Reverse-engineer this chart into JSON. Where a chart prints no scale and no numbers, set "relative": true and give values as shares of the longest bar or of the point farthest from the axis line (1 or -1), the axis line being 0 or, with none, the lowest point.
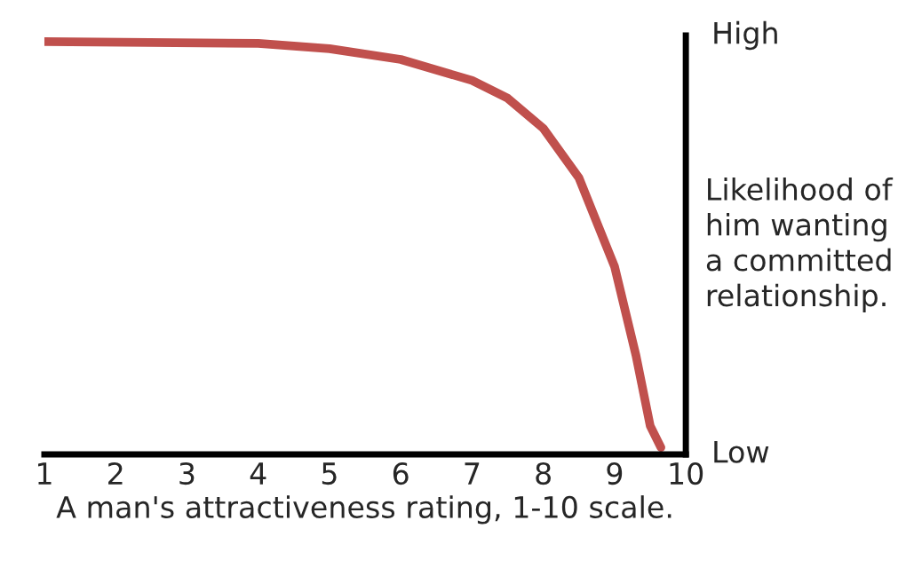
{
  "chart_data": {
    "type": "line",
    "relative": true,
    "x": [
      1,
      4,
      5,
      6,
      7,
      7.5,
      8,
      8.5,
      9,
      9.3,
      9.5,
      9.65
    ],
    "series": [
      {
        "color": "#c0504d",
        "values": [
          1,
          0.996,
          0.983,
          0.957,
          0.906,
          0.863,
          0.79,
          0.67,
          0.455,
          0.24,
          0.069,
          0.017
        ]
      }
    ],
    "xlim": [
      1,
      10
    ],
    "xticks": [
      1,
      2,
      3,
      4,
      5,
      6,
      7,
      8,
      9,
      10
    ],
    "xlabel": "A man's attractiveness rating, 1-10 scale.",
    "ylabel": "Likelihood of\nhim wanting\na committed\nrelationship.",
    "annotations": [
      "High",
      "Low"
    ],
    "grid": false,
    "legend": false,
    "marker": "none",
    "line_style": "solid"
  }
}
